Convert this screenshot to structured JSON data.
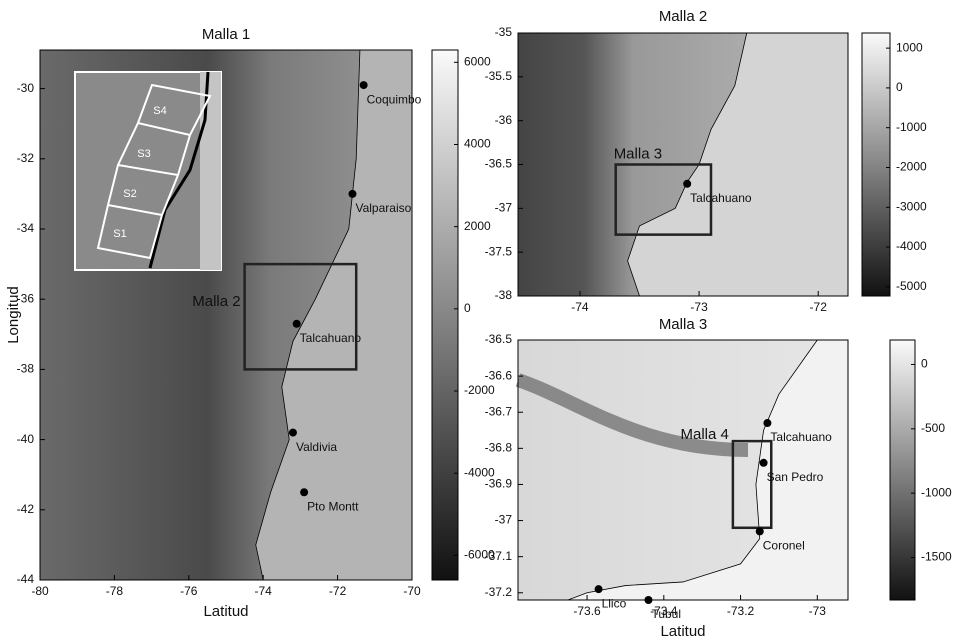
{
  "chart_data": [
    {
      "type": "map",
      "title": "Malla 1",
      "xlabel": "Latitud",
      "ylabel": "Longitud",
      "xlim": [
        -80,
        -70
      ],
      "ylim": [
        -44,
        -28.9
      ],
      "xticks": [
        -80,
        -78,
        -76,
        -74,
        -72,
        -70
      ],
      "yticks": [
        -44,
        -42,
        -40,
        -38,
        -36,
        -34,
        -32,
        -30
      ],
      "colorbar": {
        "lim": [
          -6600,
          6300
        ],
        "ticks": [
          -6000,
          -4000,
          -2000,
          0,
          2000,
          4000,
          6000
        ]
      },
      "places": [
        {
          "name": "Coquimbo",
          "lon": -71.3,
          "lat": -29.9
        },
        {
          "name": "Valparaiso",
          "lon": -71.6,
          "lat": -33.0
        },
        {
          "name": "Talcahuano",
          "lon": -73.1,
          "lat": -36.7
        },
        {
          "name": "Valdivia",
          "lon": -73.2,
          "lat": -39.8
        },
        {
          "name": "Pto Montt",
          "lon": -72.9,
          "lat": -41.5
        }
      ],
      "boxes": [
        {
          "label": "Malla 2",
          "x": [
            -74.5,
            -71.5
          ],
          "y": [
            -38,
            -35
          ]
        }
      ],
      "inset_labels": [
        "S1",
        "S2",
        "S3",
        "S4"
      ]
    },
    {
      "type": "map",
      "title": "Malla 2",
      "xlim": [
        -74.52,
        -71.75
      ],
      "ylim": [
        -38,
        -35
      ],
      "xticks": [
        -74,
        -73,
        -72
      ],
      "yticks": [
        -38,
        -37.5,
        -37,
        -36.5,
        -36,
        -35.5,
        -35
      ],
      "colorbar": {
        "lim": [
          -5230,
          1380
        ],
        "ticks": [
          -5000,
          -4000,
          -3000,
          -2000,
          -1000,
          0,
          1000
        ]
      },
      "places": [
        {
          "name": "Talcahuano",
          "lon": -73.1,
          "lat": -36.72
        }
      ],
      "boxes": [
        {
          "label": "Malla 3",
          "x": [
            -73.7,
            -72.9
          ],
          "y": [
            -37.3,
            -36.5
          ]
        }
      ]
    },
    {
      "type": "map",
      "title": "Malla 3",
      "xlabel": "Latitud",
      "xlim": [
        -73.78,
        -72.92
      ],
      "ylim": [
        -37.22,
        -36.5
      ],
      "xticks": [
        -73.6,
        -73.4,
        -73.2,
        -73
      ],
      "yticks": [
        -37.2,
        -37.1,
        -37,
        -36.9,
        -36.8,
        -36.7,
        -36.6,
        -36.5
      ],
      "colorbar": {
        "lim": [
          -1830,
          190
        ],
        "ticks": [
          -1500,
          -1000,
          -500,
          0
        ]
      },
      "places": [
        {
          "name": "Talcahuano",
          "lon": -73.13,
          "lat": -36.73
        },
        {
          "name": "San Pedro",
          "lon": -73.14,
          "lat": -36.84
        },
        {
          "name": "Coronel",
          "lon": -73.15,
          "lat": -37.03
        },
        {
          "name": "Llico",
          "lon": -73.57,
          "lat": -37.19
        },
        {
          "name": "Tubul",
          "lon": -73.44,
          "lat": -37.22
        }
      ],
      "boxes": [
        {
          "label": "Malla 4",
          "x": [
            -73.22,
            -73.12
          ],
          "y": [
            -37.02,
            -36.78
          ]
        }
      ]
    }
  ]
}
